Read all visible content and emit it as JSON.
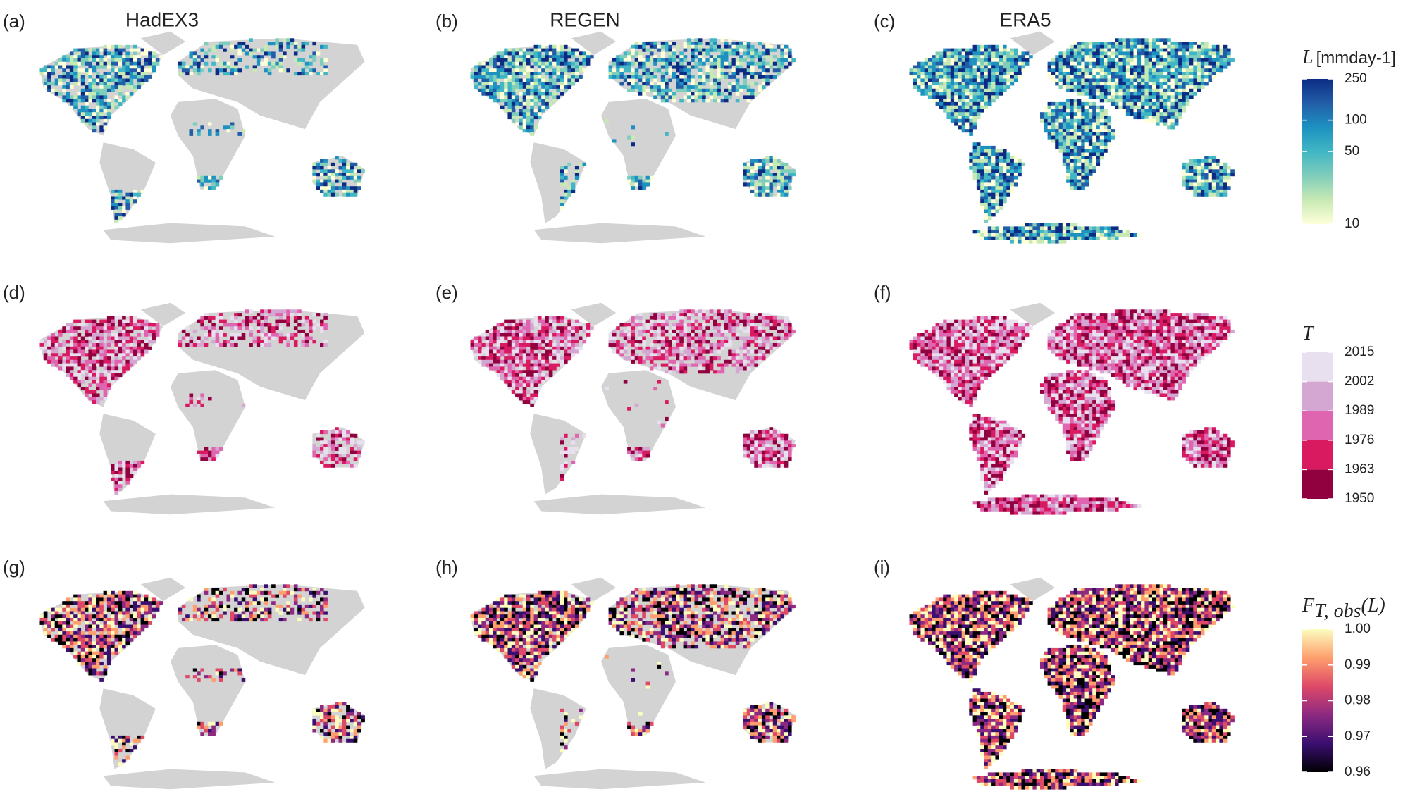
{
  "columns": [
    "HadEX3",
    "REGEN",
    "ERA5"
  ],
  "panels": [
    "(a)",
    "(b)",
    "(c)",
    "(d)",
    "(e)",
    "(f)",
    "(g)",
    "(h)",
    "(i)"
  ],
  "legends": [
    {
      "symbol": "L",
      "unit": "[mmday-1]",
      "scale": "log",
      "lim": [
        10,
        250
      ],
      "ticks": [
        10,
        50,
        100,
        250
      ],
      "colors": [
        "#ffffd9",
        "#c7e9b4",
        "#7fcdbb",
        "#41b6c4",
        "#1d91c0",
        "#225ea8",
        "#0c2c84"
      ]
    },
    {
      "symbol": "T",
      "scale": "binned",
      "lim": [
        1950,
        2015
      ],
      "ticks": [
        1950,
        1963,
        1976,
        1989,
        2002,
        2015
      ],
      "colors": [
        "#91003f",
        "#d91a60",
        "#df65b0",
        "#d4a6d2",
        "#e9e0ef"
      ]
    },
    {
      "symbol": "F",
      "subscript": "T, obs",
      "argument": "(L)",
      "scale": "linear",
      "lim": [
        0.96,
        1.0
      ],
      "ticks": [
        {
          "value": 0.96,
          "label": "0.96"
        },
        {
          "value": 0.97,
          "label": "0.97"
        },
        {
          "value": 0.98,
          "label": "0.98"
        },
        {
          "value": 0.99,
          "label": "0.99"
        },
        {
          "value": 1.0,
          "label": "1.00"
        }
      ],
      "colors": [
        "#000004",
        "#3b0f70",
        "#8c2981",
        "#de4968",
        "#fe9f6d",
        "#fcfdbf"
      ]
    }
  ]
}
